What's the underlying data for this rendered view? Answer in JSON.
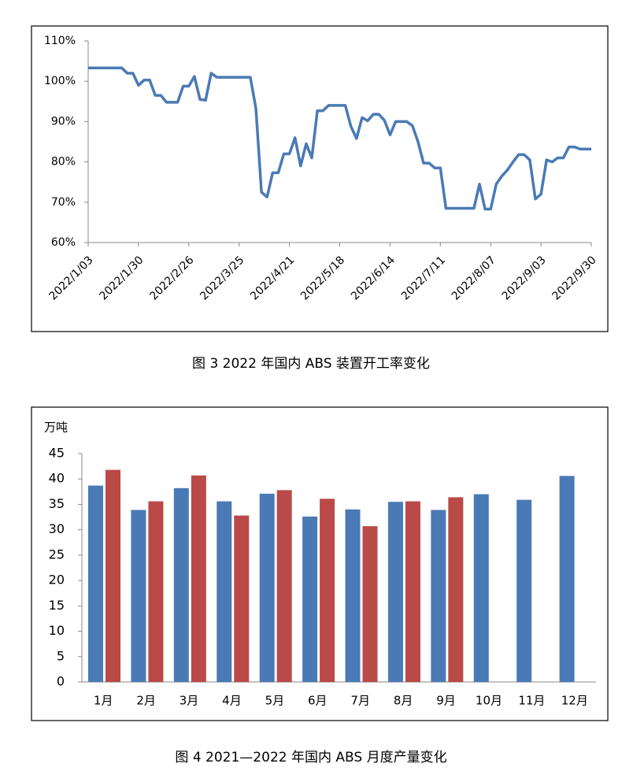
{
  "chart_data": [
    {
      "type": "line",
      "title": "图 3  2022 年国内 ABS 装置开工率变化",
      "categories": [
        "2022/1/03",
        null,
        null,
        null,
        null,
        null,
        null,
        null,
        null,
        "2022/1/30",
        null,
        null,
        null,
        null,
        null,
        null,
        null,
        null,
        "2022/2/26",
        null,
        null,
        null,
        null,
        null,
        null,
        null,
        null,
        "2022/3/25",
        null,
        null,
        null,
        null,
        null,
        null,
        null,
        null,
        "2022/4/21",
        null,
        null,
        null,
        null,
        null,
        null,
        null,
        null,
        "2022/5/18",
        null,
        null,
        null,
        null,
        null,
        null,
        null,
        null,
        "2022/6/14",
        null,
        null,
        null,
        null,
        null,
        null,
        null,
        null,
        "2022/7/11",
        null,
        null,
        null,
        null,
        null,
        null,
        null,
        null,
        "2022/8/07",
        null,
        null,
        null,
        null,
        null,
        null,
        null,
        null,
        "2022/9/03",
        null,
        null,
        null,
        null,
        null,
        null,
        null,
        null,
        "2022/9/30"
      ],
      "values": [
        103.3,
        103.3,
        103.3,
        103.3,
        103.3,
        103.3,
        103.3,
        102,
        102,
        99,
        100.3,
        100.3,
        96.5,
        96.5,
        94.8,
        94.8,
        94.8,
        98.8,
        98.8,
        101.2,
        95.5,
        95.3,
        102,
        101,
        101,
        101,
        101,
        101,
        101,
        101,
        93.3,
        72.5,
        71.3,
        77.3,
        77.3,
        82,
        82,
        86,
        79,
        84.5,
        81,
        92.7,
        92.7,
        94,
        94,
        94,
        94,
        88.8,
        85.8,
        91,
        90.2,
        91.8,
        91.8,
        90.3,
        86.7,
        90,
        90,
        90,
        89,
        85,
        79.7,
        79.7,
        78.5,
        78.5,
        68.5,
        68.5,
        68.5,
        68.5,
        68.5,
        68.5,
        74.5,
        68.3,
        68.3,
        74.5,
        76.5,
        78,
        80,
        81.8,
        81.8,
        80.5,
        70.8,
        72,
        80.5,
        80,
        81,
        81,
        83.7,
        83.7,
        83.2,
        83.2,
        83.2
      ],
      "color": "#4a7ab5",
      "ylim": [
        60,
        110
      ],
      "yticks": [
        {
          "value": 60,
          "label": "60%"
        },
        {
          "value": 70,
          "label": "70%"
        },
        {
          "value": 80,
          "label": "80%"
        },
        {
          "value": 90,
          "label": "90%"
        },
        {
          "value": 100,
          "label": "100%"
        },
        {
          "value": 110,
          "label": "110%"
        }
      ]
    },
    {
      "type": "bar",
      "title": "图 4  2021—2022 年国内 ABS 月度产量变化",
      "y_label": "万吨",
      "categories": [
        "1月",
        "2月",
        "3月",
        "4月",
        "5月",
        "6月",
        "7月",
        "8月",
        "9月",
        "10月",
        "11月",
        "12月"
      ],
      "series": [
        {
          "color": "#4a7ab5",
          "values": [
            38.7,
            33.9,
            38.2,
            35.6,
            37.1,
            32.6,
            34,
            35.5,
            33.9,
            37,
            35.9,
            40.6
          ]
        },
        {
          "color": "#b94a48",
          "values": [
            41.8,
            35.6,
            40.7,
            32.8,
            37.8,
            36.1,
            30.7,
            35.6,
            36.4,
            null,
            null,
            null
          ]
        }
      ],
      "ylim": [
        0,
        45
      ],
      "yticks": [
        0,
        5,
        10,
        15,
        20,
        25,
        30,
        35,
        40,
        45
      ]
    }
  ]
}
